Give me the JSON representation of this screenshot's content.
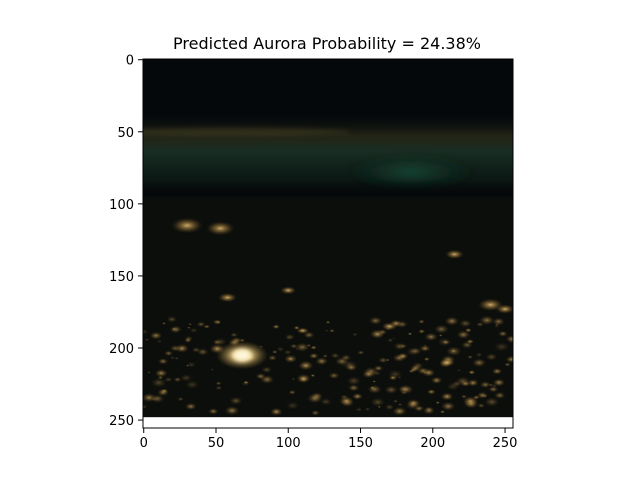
{
  "chart_data": {
    "type": "image",
    "title": "Predicted Aurora Probability = 24.38%",
    "probability_percent": 24.38,
    "image_description_class": "night-time orbital photo with aurora band",
    "image_shape": [
      256,
      256
    ],
    "x": {
      "label": "",
      "lim": [
        0,
        256
      ],
      "ticks": [
        0,
        50,
        100,
        150,
        200,
        250
      ],
      "tick_labels": [
        "0",
        "50",
        "100",
        "150",
        "200",
        "250"
      ]
    },
    "y": {
      "label": "",
      "lim": [
        256,
        0
      ],
      "ticks": [
        0,
        50,
        100,
        150,
        200,
        250
      ],
      "tick_labels": [
        "0",
        "50",
        "100",
        "150",
        "200",
        "250"
      ],
      "inverted": true
    },
    "grid": false,
    "legend": "none",
    "colors": {
      "sky": "#05080a",
      "aurora_band": "#1f3b30",
      "aurora_glow": "#1d5a44",
      "horizon_airglow": "#3b3a22",
      "city_lights": "#f2c874",
      "city_core": "#fff4c2",
      "ground": "#0d0f0c"
    }
  }
}
